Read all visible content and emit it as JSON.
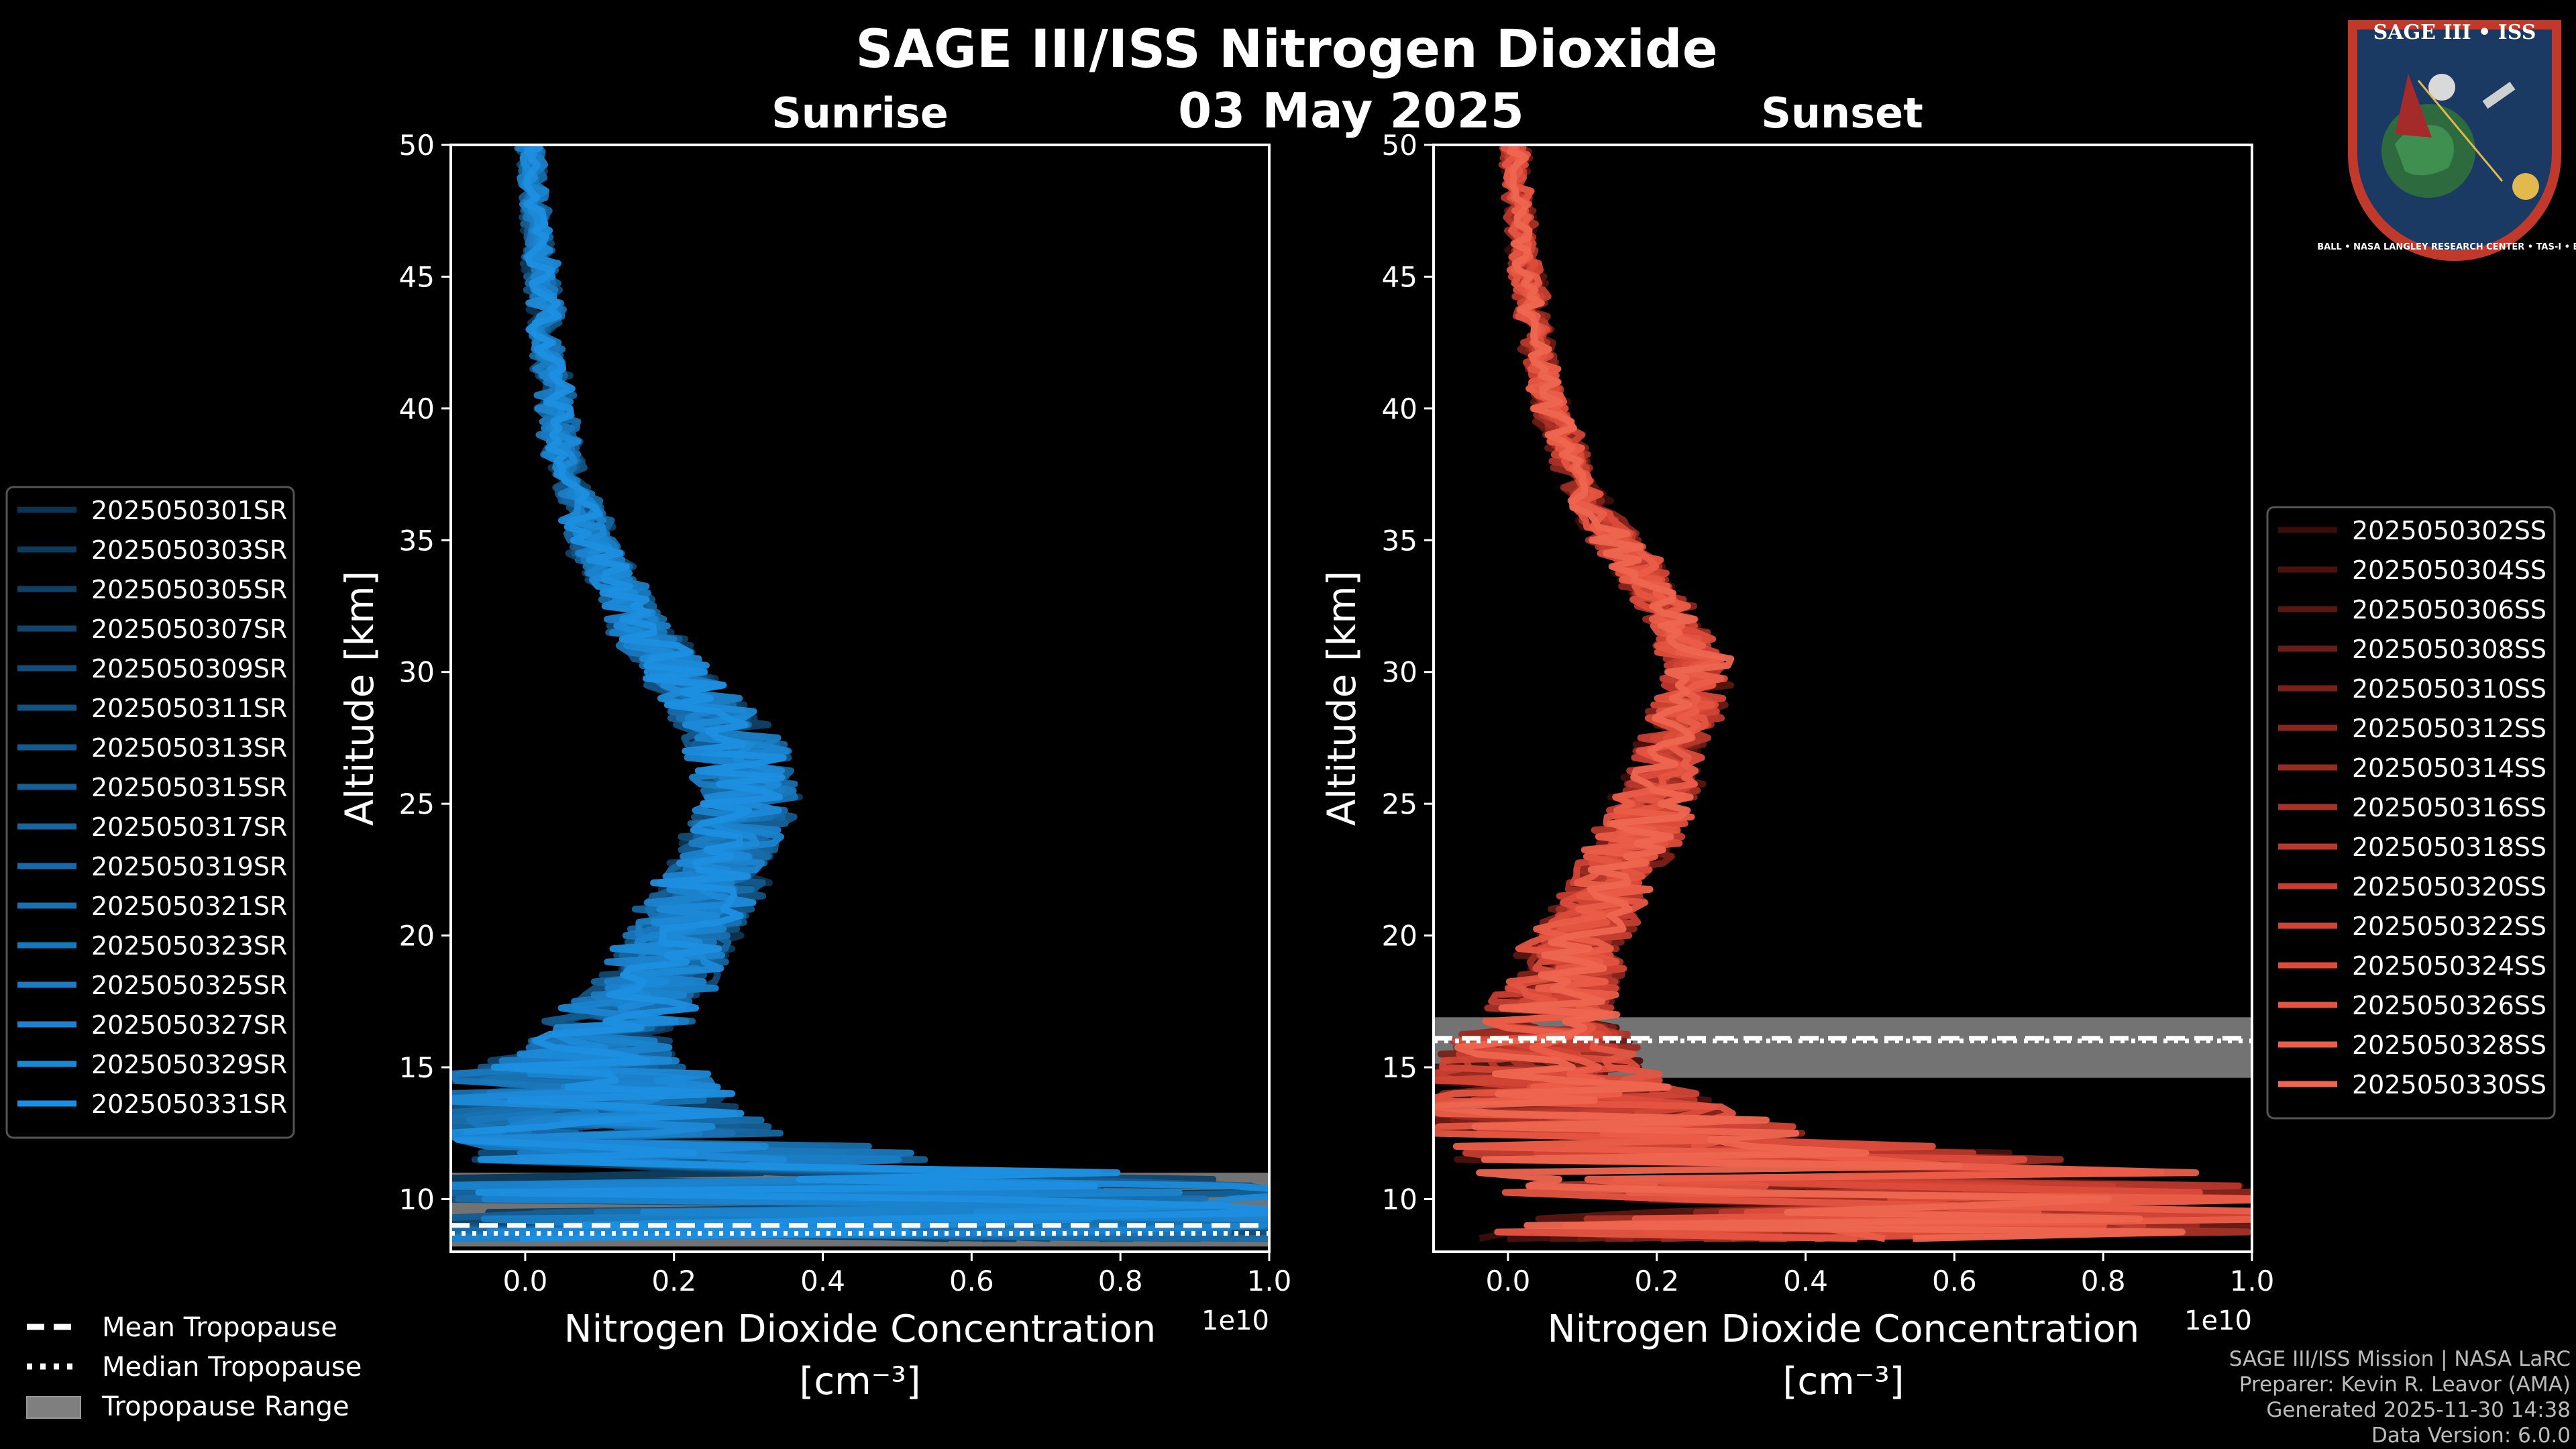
{
  "header": {
    "title": "SAGE III/ISS Nitrogen Dioxide",
    "date": "03 May 2025"
  },
  "chart_data": [
    {
      "type": "line",
      "panel": "Sunrise",
      "title": "Sunrise",
      "xlabel": "Nitrogen Dioxide Concentration",
      "xunit": "[cm⁻³]",
      "x_scale_label": "1e10",
      "ylabel": "Altitude [km]",
      "xlim": [
        -0.1,
        1.0
      ],
      "ylim": [
        8,
        50
      ],
      "xticks": [
        0.0,
        0.2,
        0.4,
        0.6,
        0.8,
        1.0
      ],
      "xtick_labels": [
        "0.0",
        "0.2",
        "0.4",
        "0.6",
        "0.8",
        "1.0"
      ],
      "yticks": [
        10,
        15,
        20,
        25,
        30,
        35,
        40,
        45,
        50
      ],
      "ytick_labels": [
        "10",
        "15",
        "20",
        "25",
        "30",
        "35",
        "40",
        "45",
        "50"
      ],
      "profile": {
        "altitude": [
          8.5,
          9.5,
          10.5,
          11.5,
          12.5,
          13.5,
          14.5,
          15.5,
          16.5,
          17.5,
          18.5,
          19.5,
          20.5,
          21.5,
          22.5,
          23.5,
          24.5,
          25.5,
          26.5,
          27.5,
          28.5,
          29.5,
          30.5,
          31.5,
          32.5,
          33.5,
          34.5,
          35.5,
          36.5,
          37.5,
          38.5,
          39.5,
          40.5,
          41.5,
          42.5,
          43.5,
          44.5,
          45.5,
          46.5,
          47.5,
          48.5,
          49.5,
          50
        ],
        "mean": [
          0.4,
          0.45,
          0.4,
          0.25,
          0.12,
          0.08,
          0.07,
          0.09,
          0.12,
          0.15,
          0.18,
          0.2,
          0.22,
          0.24,
          0.26,
          0.28,
          0.29,
          0.3,
          0.29,
          0.28,
          0.25,
          0.22,
          0.19,
          0.16,
          0.14,
          0.12,
          0.1,
          0.085,
          0.07,
          0.06,
          0.05,
          0.045,
          0.04,
          0.035,
          0.03,
          0.027,
          0.024,
          0.02,
          0.017,
          0.014,
          0.011,
          0.008,
          0.007
        ],
        "spread": [
          0.6,
          0.6,
          0.6,
          0.3,
          0.22,
          0.2,
          0.18,
          0.1,
          0.09,
          0.08,
          0.07,
          0.07,
          0.07,
          0.07,
          0.06,
          0.06,
          0.06,
          0.06,
          0.06,
          0.06,
          0.05,
          0.05,
          0.04,
          0.04,
          0.03,
          0.03,
          0.03,
          0.025,
          0.02,
          0.02,
          0.02,
          0.02,
          0.015,
          0.015,
          0.015,
          0.015,
          0.015,
          0.015,
          0.01,
          0.01,
          0.01,
          0.01,
          0.01
        ]
      },
      "series": [
        {
          "name": "2025050301SR",
          "color": "#0d3552"
        },
        {
          "name": "2025050303SR",
          "color": "#0e3b5c"
        },
        {
          "name": "2025050305SR",
          "color": "#104165"
        },
        {
          "name": "2025050307SR",
          "color": "#11476f"
        },
        {
          "name": "2025050309SR",
          "color": "#124d78"
        },
        {
          "name": "2025050311SR",
          "color": "#135382"
        },
        {
          "name": "2025050313SR",
          "color": "#14598b"
        },
        {
          "name": "2025050315SR",
          "color": "#155f95"
        },
        {
          "name": "2025050317SR",
          "color": "#16659e"
        },
        {
          "name": "2025050319SR",
          "color": "#176ba8"
        },
        {
          "name": "2025050321SR",
          "color": "#1871b1"
        },
        {
          "name": "2025050323SR",
          "color": "#1977bb"
        },
        {
          "name": "2025050325SR",
          "color": "#1a7dc4"
        },
        {
          "name": "2025050327SR",
          "color": "#1b83ce"
        },
        {
          "name": "2025050329SR",
          "color": "#1c89d7"
        },
        {
          "name": "2025050331SR",
          "color": "#1d8fe0"
        }
      ],
      "tropopause": {
        "mean": 9.0,
        "median": 8.7,
        "range": [
          8.2,
          11.0
        ]
      }
    },
    {
      "type": "line",
      "panel": "Sunset",
      "title": "Sunset",
      "xlabel": "Nitrogen Dioxide Concentration",
      "xunit": "[cm⁻³]",
      "x_scale_label": "1e10",
      "ylabel": "Altitude [km]",
      "xlim": [
        -0.1,
        1.0
      ],
      "ylim": [
        8,
        50
      ],
      "xticks": [
        0.0,
        0.2,
        0.4,
        0.6,
        0.8,
        1.0
      ],
      "xtick_labels": [
        "0.0",
        "0.2",
        "0.4",
        "0.6",
        "0.8",
        "1.0"
      ],
      "yticks": [
        10,
        15,
        20,
        25,
        30,
        35,
        40,
        45,
        50
      ],
      "ytick_labels": [
        "10",
        "15",
        "20",
        "25",
        "30",
        "35",
        "40",
        "45",
        "50"
      ],
      "profile": {
        "altitude": [
          8.5,
          9.5,
          10.5,
          11.5,
          12.5,
          13.5,
          14.5,
          15.5,
          16.5,
          17.5,
          18.5,
          19.5,
          20.5,
          21.5,
          22.5,
          23.5,
          24.5,
          25.5,
          26.5,
          27.5,
          28.5,
          29.5,
          30.5,
          31.5,
          32.5,
          33.5,
          34.5,
          35.5,
          36.5,
          37.5,
          38.5,
          39.5,
          40.5,
          41.5,
          42.5,
          43.5,
          44.5,
          45.5,
          46.5,
          47.5,
          48.5,
          49.5,
          50
        ],
        "mean": [
          0.5,
          0.55,
          0.5,
          0.35,
          0.15,
          0.08,
          0.05,
          0.04,
          0.05,
          0.06,
          0.08,
          0.09,
          0.11,
          0.13,
          0.15,
          0.17,
          0.19,
          0.2,
          0.21,
          0.22,
          0.24,
          0.25,
          0.25,
          0.23,
          0.21,
          0.18,
          0.16,
          0.13,
          0.11,
          0.09,
          0.08,
          0.065,
          0.055,
          0.045,
          0.04,
          0.035,
          0.03,
          0.025,
          0.02,
          0.015,
          0.012,
          0.01,
          0.01
        ],
        "spread": [
          0.5,
          0.5,
          0.5,
          0.4,
          0.25,
          0.2,
          0.15,
          0.12,
          0.1,
          0.08,
          0.07,
          0.06,
          0.06,
          0.05,
          0.05,
          0.05,
          0.05,
          0.05,
          0.04,
          0.04,
          0.04,
          0.04,
          0.04,
          0.03,
          0.03,
          0.03,
          0.03,
          0.025,
          0.02,
          0.02,
          0.02,
          0.02,
          0.015,
          0.015,
          0.015,
          0.015,
          0.015,
          0.015,
          0.01,
          0.01,
          0.01,
          0.01,
          0.01
        ]
      },
      "series": [
        {
          "name": "2025050302SS",
          "color": "#3a0d0a"
        },
        {
          "name": "2025050304SS",
          "color": "#4a120e"
        },
        {
          "name": "2025050306SS",
          "color": "#5a1711"
        },
        {
          "name": "2025050308SS",
          "color": "#6a1c15"
        },
        {
          "name": "2025050310SS",
          "color": "#7a2119"
        },
        {
          "name": "2025050312SS",
          "color": "#8a261d"
        },
        {
          "name": "2025050314SS",
          "color": "#992c22"
        },
        {
          "name": "2025050316SS",
          "color": "#a93226"
        },
        {
          "name": "2025050318SS",
          "color": "#b8382b"
        },
        {
          "name": "2025050320SS",
          "color": "#c53e30"
        },
        {
          "name": "2025050322SS",
          "color": "#d14535"
        },
        {
          "name": "2025050324SS",
          "color": "#dc4c3b"
        },
        {
          "name": "2025050326SS",
          "color": "#e45441"
        },
        {
          "name": "2025050328SS",
          "color": "#ea5d48"
        },
        {
          "name": "2025050330SS",
          "color": "#ee6650"
        }
      ],
      "tropopause": {
        "mean": 16.1,
        "median": 16.0,
        "range": [
          14.6,
          16.9
        ]
      }
    }
  ],
  "tropopause_legend": {
    "mean": "Mean Tropopause",
    "median": "Median Tropopause",
    "range": "Tropopause Range",
    "range_color": "#7f7f7f"
  },
  "footer": {
    "line1": "SAGE III/ISS Mission | NASA LaRC",
    "line2": "Preparer: Kevin R. Leavor (AMA)",
    "line3": "Generated 2025-11-30 14:38",
    "line4": "Data Version: 6.0.0"
  },
  "logo": {
    "title": "SAGE III • ISS",
    "ring_text": "BALL • NASA LANGLEY RESEARCH CENTER • TAS-I • ESA",
    "colors": {
      "ring": "#c0392b",
      "inner": "#1b3a63",
      "gold": "#e1b94c"
    }
  },
  "colors": {
    "background": "#000000",
    "axes": "#ffffff",
    "text": "#ffffff",
    "footer": "#bbbbbb"
  }
}
